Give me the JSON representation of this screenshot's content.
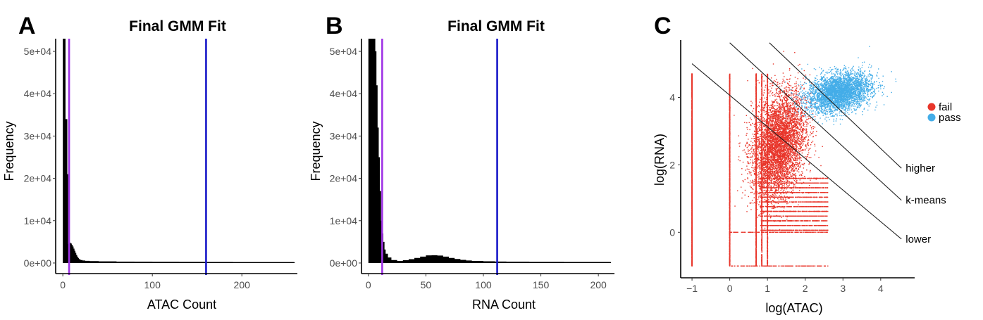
{
  "chart_data": [
    {
      "id": "A",
      "type": "bar",
      "panel_letter": "A",
      "title": "Final GMM Fit",
      "xlabel": "ATAC Count",
      "ylabel": "Frequency",
      "xlim": [
        -8,
        262
      ],
      "ylim": [
        -2500,
        53000
      ],
      "xticks": [
        {
          "v": 0,
          "label": "0"
        },
        {
          "v": 100,
          "label": "100"
        },
        {
          "v": 200,
          "label": "200"
        }
      ],
      "yticks": [
        {
          "v": 0,
          "label": "0e+00"
        },
        {
          "v": 10000,
          "label": "1e+04"
        },
        {
          "v": 20000,
          "label": "2e+04"
        },
        {
          "v": 30000,
          "label": "3e+04"
        },
        {
          "v": 40000,
          "label": "4e+04"
        },
        {
          "v": 50000,
          "label": "5e+04"
        }
      ],
      "histogram": [
        [
          0,
          53000
        ],
        [
          1,
          53000
        ],
        [
          2,
          53000
        ],
        [
          3,
          34000
        ],
        [
          4,
          34000
        ],
        [
          5,
          21000
        ],
        [
          6,
          4500
        ],
        [
          7,
          4600
        ],
        [
          8,
          4800
        ],
        [
          9,
          4600
        ],
        [
          10,
          4300
        ],
        [
          11,
          3900
        ],
        [
          12,
          3400
        ],
        [
          13,
          2900
        ],
        [
          14,
          2400
        ],
        [
          15,
          1900
        ],
        [
          16,
          1500
        ],
        [
          17,
          1200
        ],
        [
          18,
          950
        ],
        [
          19,
          800
        ],
        [
          20,
          700
        ],
        [
          22,
          600
        ],
        [
          25,
          520
        ],
        [
          30,
          450
        ],
        [
          40,
          380
        ],
        [
          60,
          330
        ],
        [
          80,
          300
        ],
        [
          100,
          290
        ],
        [
          130,
          270
        ],
        [
          160,
          250
        ],
        [
          190,
          230
        ],
        [
          220,
          220
        ],
        [
          258,
          200
        ]
      ],
      "vlines": [
        {
          "x": 7,
          "color": "#a033e6"
        },
        {
          "x": 160,
          "color": "#1818c8"
        }
      ]
    },
    {
      "id": "B",
      "type": "bar",
      "panel_letter": "B",
      "title": "Final GMM Fit",
      "xlabel": "RNA Count",
      "ylabel": "Frequency",
      "xlim": [
        -6,
        214
      ],
      "ylim": [
        -2500,
        53000
      ],
      "xticks": [
        {
          "v": 0,
          "label": "0"
        },
        {
          "v": 50,
          "label": "50"
        },
        {
          "v": 100,
          "label": "100"
        },
        {
          "v": 150,
          "label": "150"
        },
        {
          "v": 200,
          "label": "200"
        }
      ],
      "yticks": [
        {
          "v": 0,
          "label": "0e+00"
        },
        {
          "v": 10000,
          "label": "1e+04"
        },
        {
          "v": 20000,
          "label": "2e+04"
        },
        {
          "v": 30000,
          "label": "3e+04"
        },
        {
          "v": 40000,
          "label": "4e+04"
        },
        {
          "v": 50000,
          "label": "5e+04"
        }
      ],
      "histogram": [
        [
          0,
          53000
        ],
        [
          1,
          53000
        ],
        [
          2,
          53000
        ],
        [
          3,
          53000
        ],
        [
          4,
          53000
        ],
        [
          5,
          53000
        ],
        [
          6,
          50000
        ],
        [
          7,
          42000
        ],
        [
          8,
          32000
        ],
        [
          9,
          25000
        ],
        [
          10,
          17000
        ],
        [
          11,
          10000
        ],
        [
          12,
          7000
        ],
        [
          13,
          5000
        ],
        [
          14,
          3200
        ],
        [
          15,
          2200
        ],
        [
          17,
          1300
        ],
        [
          20,
          700
        ],
        [
          25,
          500
        ],
        [
          30,
          650
        ],
        [
          35,
          900
        ],
        [
          40,
          1200
        ],
        [
          45,
          1500
        ],
        [
          50,
          1800
        ],
        [
          55,
          1850
        ],
        [
          60,
          1750
        ],
        [
          65,
          1500
        ],
        [
          70,
          1200
        ],
        [
          75,
          950
        ],
        [
          80,
          750
        ],
        [
          85,
          600
        ],
        [
          90,
          500
        ],
        [
          100,
          400
        ],
        [
          110,
          350
        ],
        [
          120,
          300
        ],
        [
          140,
          270
        ],
        [
          170,
          240
        ],
        [
          210,
          220
        ]
      ],
      "vlines": [
        {
          "x": 12,
          "color": "#a033e6"
        },
        {
          "x": 112,
          "color": "#1818c8"
        }
      ]
    },
    {
      "id": "C",
      "type": "scatter",
      "panel_letter": "C",
      "title": "",
      "xlabel": "log(ATAC)",
      "ylabel": "log(RNA)",
      "xlim": [
        -1.3,
        4.9
      ],
      "ylim": [
        -1.35,
        5.7
      ],
      "xticks": [
        {
          "v": -1,
          "label": "−1"
        },
        {
          "v": 0,
          "label": "0"
        },
        {
          "v": 1,
          "label": "1"
        },
        {
          "v": 2,
          "label": "2"
        },
        {
          "v": 3,
          "label": "3"
        },
        {
          "v": 4,
          "label": "4"
        }
      ],
      "yticks": [
        {
          "v": 0,
          "label": "0"
        },
        {
          "v": 2,
          "label": "2"
        },
        {
          "v": 4,
          "label": "4"
        }
      ],
      "series": [
        {
          "name": "fail",
          "color": "#e8352a"
        },
        {
          "name": "pass",
          "color": "#44ade8"
        }
      ],
      "lines": [
        {
          "label": "higher",
          "x": [
            1.05,
            4.55
          ],
          "y": [
            5.62,
            1.9
          ]
        },
        {
          "label": "k-means",
          "x": [
            0.0,
            4.55
          ],
          "y": [
            5.62,
            0.95
          ]
        },
        {
          "label": "lower",
          "x": [
            -1.0,
            4.55
          ],
          "y": [
            5.0,
            -0.2
          ]
        }
      ],
      "legend_position": "right"
    }
  ]
}
